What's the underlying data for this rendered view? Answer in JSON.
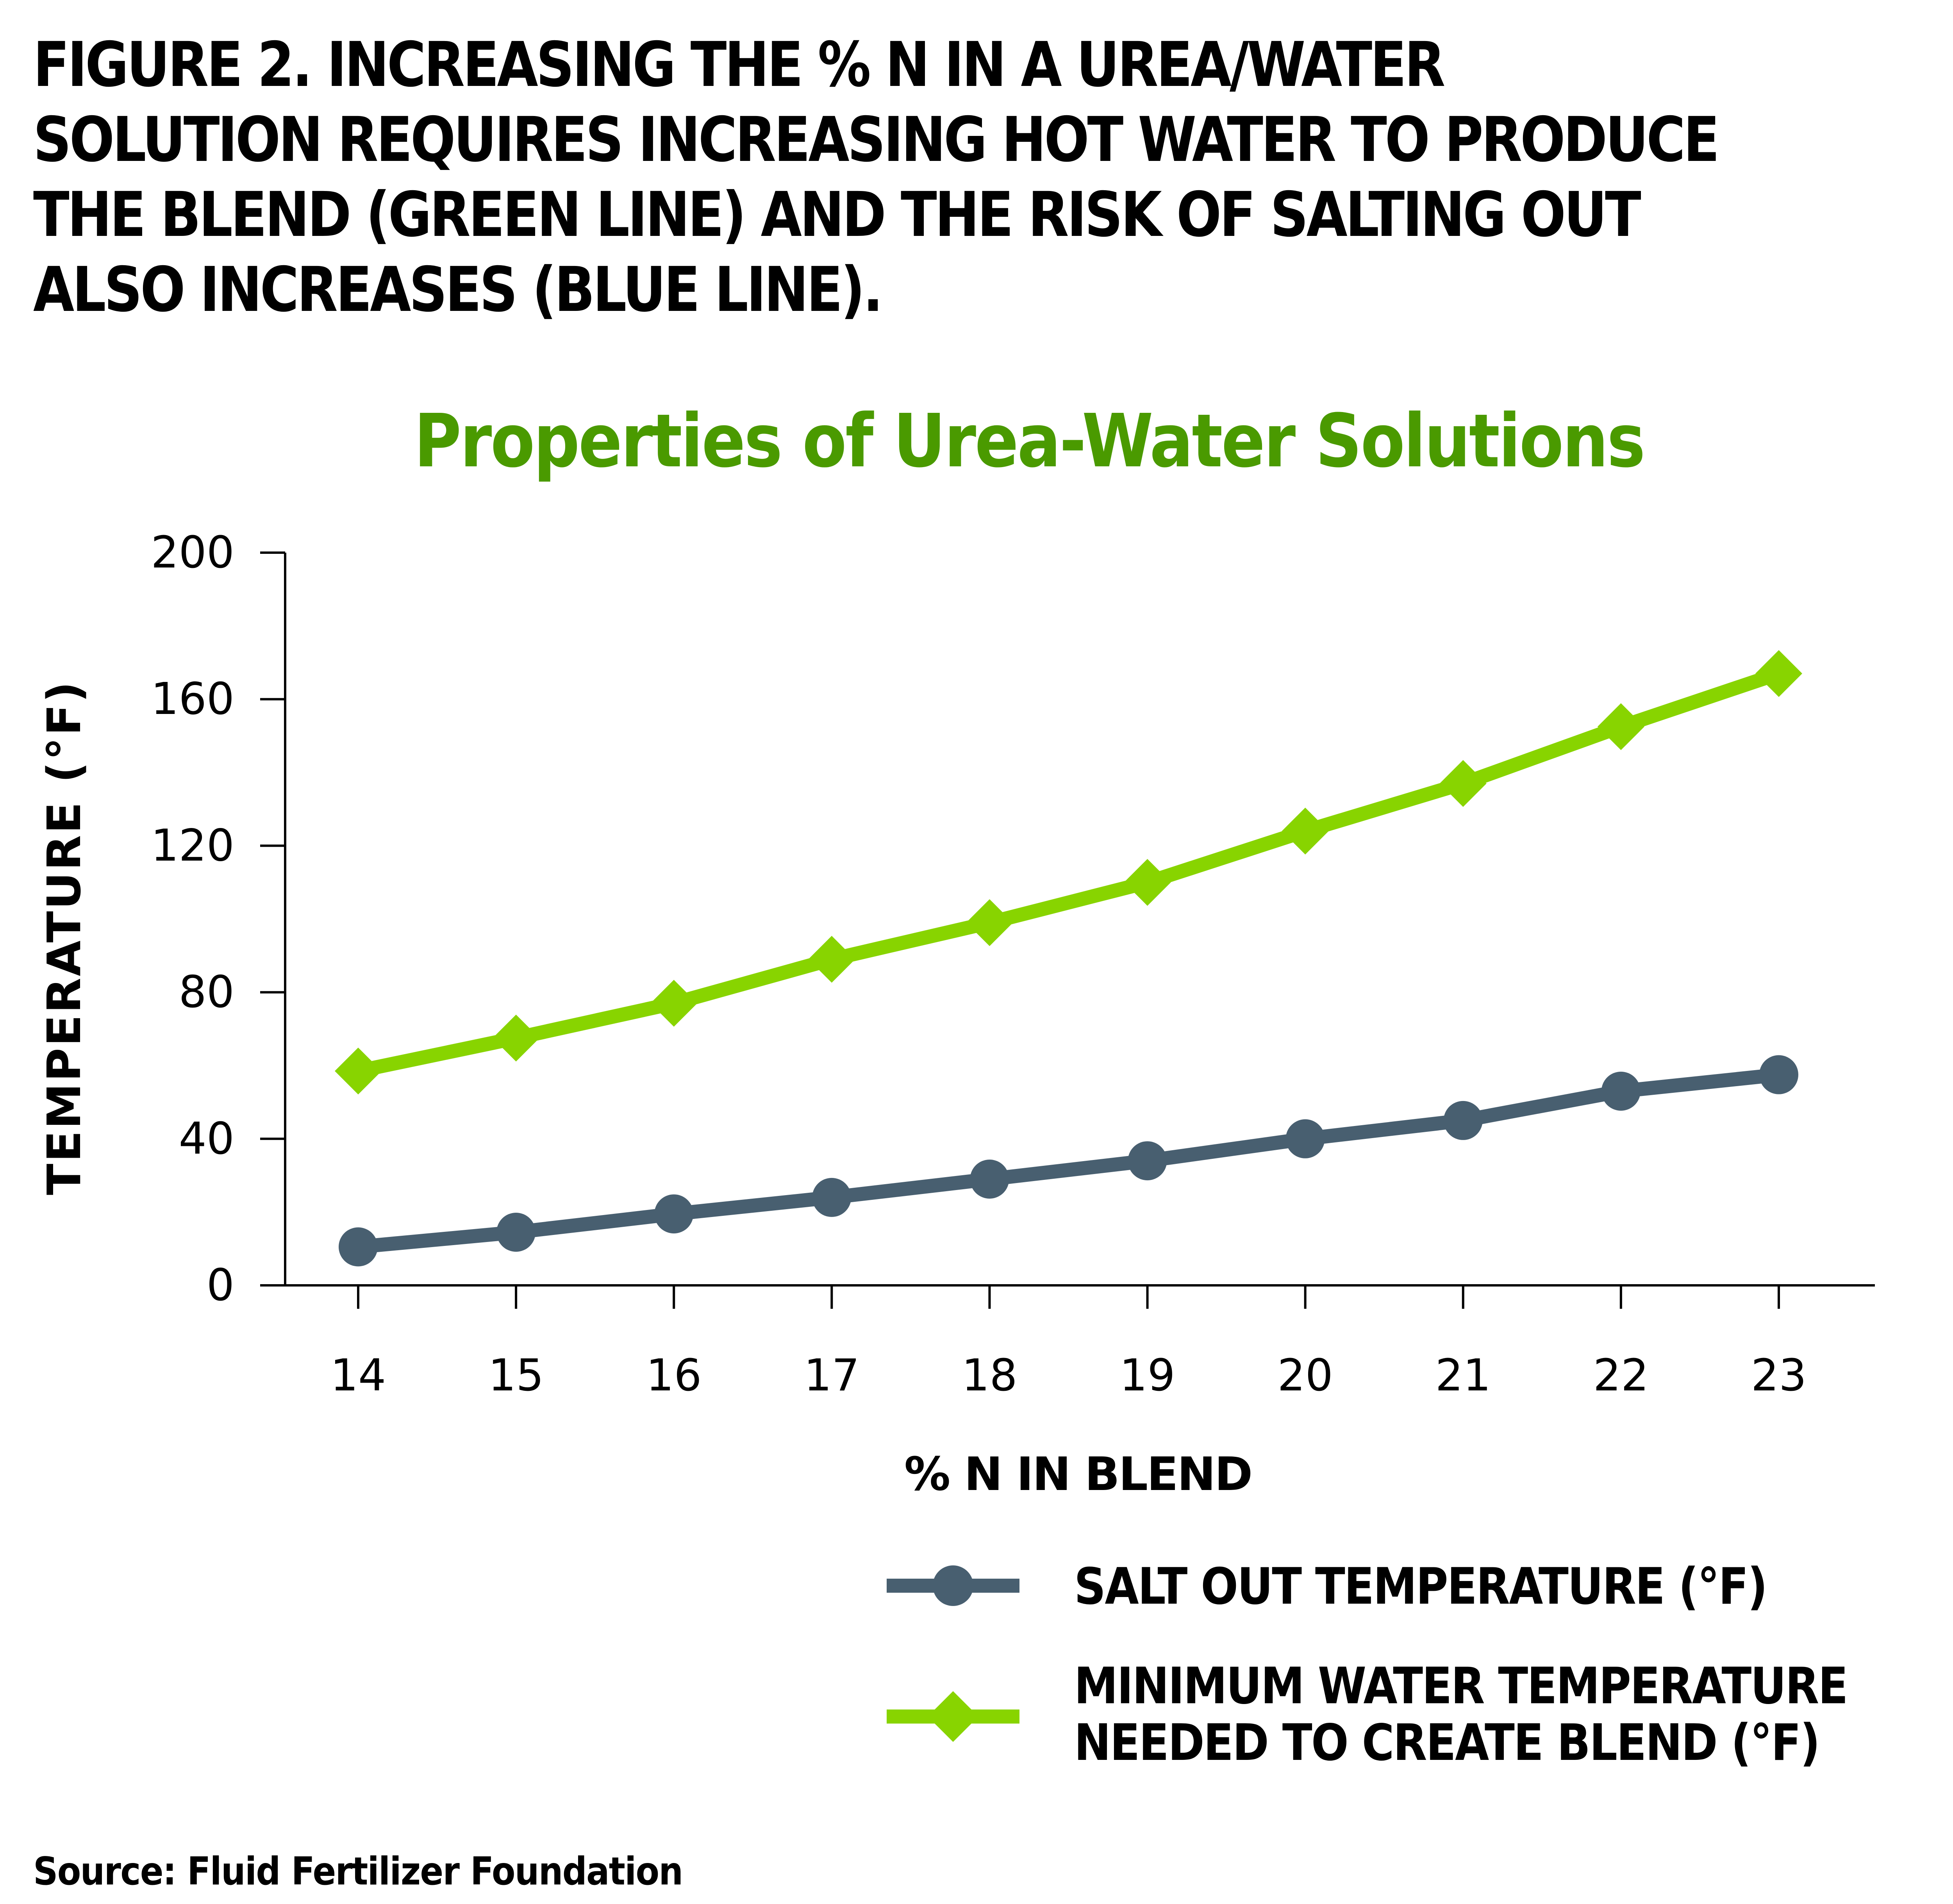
{
  "figure": {
    "caption_lines": [
      "FIGURE 2. INCREASING THE % N IN A UREA/WATER",
      "SOLUTION REQUIRES INCREASING HOT WATER TO PRODUCE",
      "THE BLEND (GREEN LINE) AND THE RISK OF SALTING OUT",
      "ALSO INCREASES (BLUE LINE)."
    ],
    "source": "Source: Fluid Fertilizer Foundation"
  },
  "colors": {
    "title_green": "#4a9a00",
    "series_green": "#88d400",
    "series_slate": "#485f70",
    "axis": "#000000"
  },
  "chart_data": {
    "type": "line",
    "title": "Properties of Urea-Water Solutions",
    "xlabel": "% N IN BLEND",
    "ylabel": "TEMPERATURE (°F)",
    "x": [
      14,
      15,
      16,
      17,
      18,
      19,
      20,
      21,
      22,
      23
    ],
    "x_tick_labels": [
      "14",
      "15",
      "16",
      "17",
      "18",
      "19",
      "20",
      "21",
      "22",
      "23"
    ],
    "y_ticks": [
      0,
      40,
      80,
      120,
      160,
      200
    ],
    "y_tick_labels": [
      "0",
      "40",
      "80",
      "120",
      "160",
      "200"
    ],
    "ylim": [
      0,
      200
    ],
    "grid": false,
    "legend_position": "bottom-right",
    "series": [
      {
        "name": "SALT OUT TEMPERATURE (°F)",
        "marker": "circle",
        "color": "#485f70",
        "values": [
          10.5,
          14.5,
          19.5,
          24,
          29,
          34,
          40,
          45,
          53,
          57.5
        ]
      },
      {
        "name": "MINIMUM WATER TEMPERATURE NEEDED TO CREATE BLEND (°F)",
        "marker": "diamond",
        "color": "#88d400",
        "values": [
          58.5,
          67.5,
          77,
          89,
          99,
          110,
          124,
          137,
          152.5,
          167
        ]
      }
    ]
  },
  "legend": {
    "items": [
      {
        "lines": [
          "SALT OUT TEMPERATURE (°F)"
        ],
        "icon": "circle-marker-line"
      },
      {
        "lines": [
          "MINIMUM WATER TEMPERATURE",
          "NEEDED TO CREATE BLEND (°F)"
        ],
        "icon": "diamond-marker-line"
      }
    ]
  }
}
